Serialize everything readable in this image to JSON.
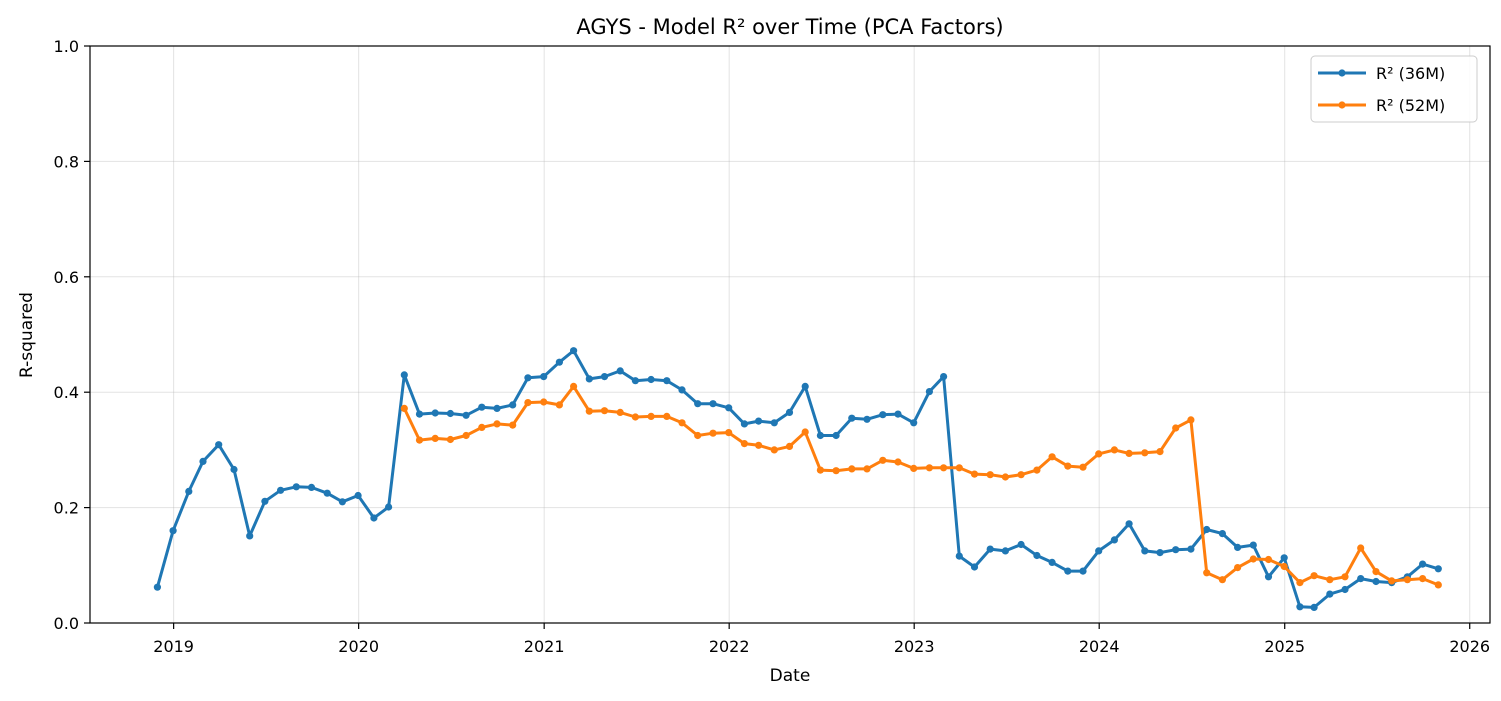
{
  "chart_data": {
    "type": "line",
    "title": "AGYS - Model R² over Time (PCA Factors)",
    "xlabel": "Date",
    "ylabel": "R-squared",
    "ylim": [
      0,
      1
    ],
    "xlim": [
      "2018-07-20",
      "2026-02-10"
    ],
    "x_ticks": [
      "2019",
      "2020",
      "2021",
      "2022",
      "2023",
      "2024",
      "2025",
      "2026"
    ],
    "y_ticks": [
      "0.0",
      "0.2",
      "0.4",
      "0.6",
      "0.8",
      "1.0"
    ],
    "grid": true,
    "legend_position": "top-right",
    "series": [
      {
        "name": "R² (36M)",
        "color": "#1f77b4",
        "points": [
          [
            "2018-11-30",
            0.062
          ],
          [
            "2018-12-31",
            0.16
          ],
          [
            "2019-01-31",
            0.228
          ],
          [
            "2019-02-28",
            0.28
          ],
          [
            "2019-03-31",
            0.309
          ],
          [
            "2019-04-30",
            0.266
          ],
          [
            "2019-05-31",
            0.151
          ],
          [
            "2019-06-30",
            0.211
          ],
          [
            "2019-07-31",
            0.23
          ],
          [
            "2019-08-31",
            0.236
          ],
          [
            "2019-09-30",
            0.235
          ],
          [
            "2019-10-31",
            0.225
          ],
          [
            "2019-11-30",
            0.21
          ],
          [
            "2019-12-31",
            0.221
          ],
          [
            "2020-01-31",
            0.182
          ],
          [
            "2020-02-29",
            0.201
          ],
          [
            "2020-03-31",
            0.43
          ],
          [
            "2020-04-30",
            0.362
          ],
          [
            "2020-05-31",
            0.364
          ],
          [
            "2020-06-30",
            0.363
          ],
          [
            "2020-07-31",
            0.36
          ],
          [
            "2020-08-31",
            0.374
          ],
          [
            "2020-09-30",
            0.372
          ],
          [
            "2020-10-31",
            0.378
          ],
          [
            "2020-11-30",
            0.425
          ],
          [
            "2020-12-31",
            0.427
          ],
          [
            "2021-01-31",
            0.452
          ],
          [
            "2021-02-28",
            0.472
          ],
          [
            "2021-03-31",
            0.423
          ],
          [
            "2021-04-30",
            0.427
          ],
          [
            "2021-05-31",
            0.437
          ],
          [
            "2021-06-30",
            0.42
          ],
          [
            "2021-07-31",
            0.422
          ],
          [
            "2021-08-31",
            0.42
          ],
          [
            "2021-09-30",
            0.404
          ],
          [
            "2021-10-31",
            0.38
          ],
          [
            "2021-11-30",
            0.38
          ],
          [
            "2021-12-31",
            0.373
          ],
          [
            "2022-01-31",
            0.345
          ],
          [
            "2022-02-28",
            0.35
          ],
          [
            "2022-03-31",
            0.347
          ],
          [
            "2022-04-30",
            0.365
          ],
          [
            "2022-05-31",
            0.41
          ],
          [
            "2022-06-30",
            0.325
          ],
          [
            "2022-07-31",
            0.325
          ],
          [
            "2022-08-31",
            0.355
          ],
          [
            "2022-09-30",
            0.353
          ],
          [
            "2022-10-31",
            0.361
          ],
          [
            "2022-11-30",
            0.362
          ],
          [
            "2022-12-31",
            0.347
          ],
          [
            "2023-01-31",
            0.401
          ],
          [
            "2023-02-28",
            0.427
          ],
          [
            "2023-03-31",
            0.116
          ],
          [
            "2023-04-30",
            0.097
          ],
          [
            "2023-05-31",
            0.128
          ],
          [
            "2023-06-30",
            0.125
          ],
          [
            "2023-07-31",
            0.136
          ],
          [
            "2023-08-31",
            0.117
          ],
          [
            "2023-09-30",
            0.105
          ],
          [
            "2023-10-31",
            0.09
          ],
          [
            "2023-11-30",
            0.09
          ],
          [
            "2023-12-31",
            0.125
          ],
          [
            "2024-01-31",
            0.144
          ],
          [
            "2024-02-29",
            0.172
          ],
          [
            "2024-03-31",
            0.125
          ],
          [
            "2024-04-30",
            0.122
          ],
          [
            "2024-05-31",
            0.127
          ],
          [
            "2024-06-30",
            0.128
          ],
          [
            "2024-07-31",
            0.162
          ],
          [
            "2024-08-31",
            0.155
          ],
          [
            "2024-09-30",
            0.131
          ],
          [
            "2024-10-31",
            0.135
          ],
          [
            "2024-11-30",
            0.08
          ],
          [
            "2024-12-31",
            0.113
          ],
          [
            "2025-01-31",
            0.028
          ],
          [
            "2025-02-28",
            0.027
          ],
          [
            "2025-03-31",
            0.05
          ],
          [
            "2025-04-30",
            0.058
          ],
          [
            "2025-05-31",
            0.077
          ],
          [
            "2025-06-30",
            0.072
          ],
          [
            "2025-07-31",
            0.07
          ],
          [
            "2025-08-31",
            0.08
          ],
          [
            "2025-09-30",
            0.102
          ],
          [
            "2025-10-31",
            0.094
          ]
        ]
      },
      {
        "name": "R² (52M)",
        "color": "#ff7f0e",
        "points": [
          [
            "2020-03-31",
            0.372
          ],
          [
            "2020-04-30",
            0.317
          ],
          [
            "2020-05-31",
            0.32
          ],
          [
            "2020-06-30",
            0.318
          ],
          [
            "2020-07-31",
            0.325
          ],
          [
            "2020-08-31",
            0.339
          ],
          [
            "2020-09-30",
            0.345
          ],
          [
            "2020-10-31",
            0.343
          ],
          [
            "2020-11-30",
            0.382
          ],
          [
            "2020-12-31",
            0.383
          ],
          [
            "2021-01-31",
            0.378
          ],
          [
            "2021-02-28",
            0.41
          ],
          [
            "2021-03-31",
            0.367
          ],
          [
            "2021-04-30",
            0.368
          ],
          [
            "2021-05-31",
            0.365
          ],
          [
            "2021-06-30",
            0.357
          ],
          [
            "2021-07-31",
            0.358
          ],
          [
            "2021-08-31",
            0.358
          ],
          [
            "2021-09-30",
            0.347
          ],
          [
            "2021-10-31",
            0.325
          ],
          [
            "2021-11-30",
            0.329
          ],
          [
            "2021-12-31",
            0.33
          ],
          [
            "2022-01-31",
            0.311
          ],
          [
            "2022-02-28",
            0.308
          ],
          [
            "2022-03-31",
            0.3
          ],
          [
            "2022-04-30",
            0.306
          ],
          [
            "2022-05-31",
            0.331
          ],
          [
            "2022-06-30",
            0.265
          ],
          [
            "2022-07-31",
            0.264
          ],
          [
            "2022-08-31",
            0.267
          ],
          [
            "2022-09-30",
            0.267
          ],
          [
            "2022-10-31",
            0.282
          ],
          [
            "2022-11-30",
            0.279
          ],
          [
            "2022-12-31",
            0.268
          ],
          [
            "2023-01-31",
            0.269
          ],
          [
            "2023-02-28",
            0.269
          ],
          [
            "2023-03-31",
            0.269
          ],
          [
            "2023-04-30",
            0.258
          ],
          [
            "2023-05-31",
            0.257
          ],
          [
            "2023-06-30",
            0.253
          ],
          [
            "2023-07-31",
            0.257
          ],
          [
            "2023-08-31",
            0.265
          ],
          [
            "2023-09-30",
            0.288
          ],
          [
            "2023-10-31",
            0.272
          ],
          [
            "2023-11-30",
            0.27
          ],
          [
            "2023-12-31",
            0.293
          ],
          [
            "2024-01-31",
            0.3
          ],
          [
            "2024-02-29",
            0.294
          ],
          [
            "2024-03-31",
            0.295
          ],
          [
            "2024-04-30",
            0.297
          ],
          [
            "2024-05-31",
            0.338
          ],
          [
            "2024-06-30",
            0.352
          ],
          [
            "2024-07-31",
            0.087
          ],
          [
            "2024-08-31",
            0.075
          ],
          [
            "2024-09-30",
            0.096
          ],
          [
            "2024-10-31",
            0.111
          ],
          [
            "2024-11-30",
            0.11
          ],
          [
            "2024-12-31",
            0.098
          ],
          [
            "2025-01-31",
            0.07
          ],
          [
            "2025-02-28",
            0.082
          ],
          [
            "2025-03-31",
            0.075
          ],
          [
            "2025-04-30",
            0.08
          ],
          [
            "2025-05-31",
            0.13
          ],
          [
            "2025-06-30",
            0.089
          ],
          [
            "2025-07-31",
            0.073
          ],
          [
            "2025-08-31",
            0.075
          ],
          [
            "2025-09-30",
            0.077
          ],
          [
            "2025-10-31",
            0.066
          ]
        ]
      }
    ]
  }
}
